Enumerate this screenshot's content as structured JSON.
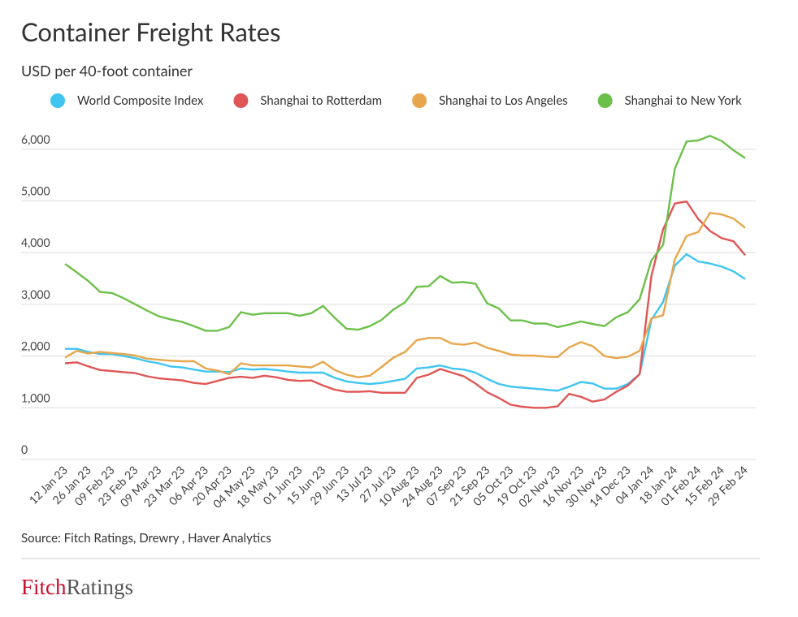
{
  "chart_data": {
    "type": "line",
    "title": "Container Freight Rates",
    "subtitle": "USD per 40-foot container",
    "source": "Source: Fitch Ratings, Drewry , Haver Analytics",
    "categories": [
      "12 Jan 23",
      null,
      "26 Jan 23",
      null,
      "09 Feb 23",
      null,
      "23 Feb 23",
      null,
      "09 Mar 23",
      null,
      "23 Mar 23",
      null,
      "06 Apr 23",
      null,
      "20 Apr 23",
      null,
      "04 May 23",
      null,
      "18 May 23",
      null,
      "01 Jun 23",
      null,
      "15 Jun 23",
      null,
      "29 Jun 23",
      null,
      "13 Jul 23",
      null,
      "27 Jul 23",
      null,
      "10 Aug 23",
      null,
      "24 Aug 23",
      null,
      "07 Sep 23",
      null,
      "21 Sep 23",
      null,
      "05 Oct 23",
      null,
      "19 Oct 23",
      null,
      "02 Nov 23",
      null,
      "16 Nov 23",
      null,
      "30 Nov 23",
      null,
      "14 Dec 23",
      null,
      "04 Jan 24",
      null,
      "18 Jan 24",
      null,
      "01 Feb 24",
      null,
      "15 Feb 24",
      null,
      "29 Feb 24"
    ],
    "series": [
      {
        "name": "World Composite Index",
        "color": "#3fc5f0",
        "values": [
          2140,
          2140,
          2080,
          2040,
          2040,
          2000,
          1960,
          1900,
          1860,
          1800,
          1780,
          1740,
          1700,
          1700,
          1690,
          1760,
          1740,
          1750,
          1730,
          1700,
          1680,
          1680,
          1680,
          1580,
          1510,
          1480,
          1460,
          1480,
          1520,
          1560,
          1760,
          1780,
          1820,
          1760,
          1740,
          1680,
          1560,
          1460,
          1410,
          1390,
          1370,
          1350,
          1330,
          1410,
          1500,
          1470,
          1370,
          1370,
          1460,
          1650,
          2700,
          3050,
          3750,
          3970,
          3830,
          3790,
          3730,
          3640,
          3490
        ]
      },
      {
        "name": "Shanghai to Rotterdam",
        "color": "#e05656",
        "values": [
          1860,
          1880,
          1800,
          1730,
          1710,
          1690,
          1670,
          1610,
          1570,
          1550,
          1530,
          1480,
          1460,
          1520,
          1580,
          1600,
          1580,
          1620,
          1590,
          1540,
          1520,
          1530,
          1430,
          1350,
          1310,
          1310,
          1320,
          1290,
          1290,
          1290,
          1580,
          1640,
          1750,
          1680,
          1610,
          1470,
          1300,
          1190,
          1060,
          1020,
          1000,
          1000,
          1030,
          1270,
          1210,
          1120,
          1160,
          1310,
          1430,
          1650,
          3550,
          4450,
          4950,
          4990,
          4650,
          4420,
          4280,
          4220,
          3950
        ]
      },
      {
        "name": "Shanghai to Los Angeles",
        "color": "#e8a64c",
        "values": [
          1970,
          2100,
          2050,
          2080,
          2060,
          2040,
          2010,
          1950,
          1930,
          1910,
          1900,
          1900,
          1760,
          1720,
          1650,
          1860,
          1820,
          1820,
          1820,
          1820,
          1800,
          1780,
          1890,
          1730,
          1640,
          1590,
          1620,
          1790,
          1970,
          2080,
          2310,
          2350,
          2350,
          2240,
          2220,
          2260,
          2160,
          2100,
          2030,
          2010,
          2010,
          1990,
          1980,
          2170,
          2270,
          2190,
          2000,
          1960,
          1990,
          2100,
          2730,
          2790,
          3870,
          4320,
          4400,
          4770,
          4740,
          4660,
          4480
        ]
      },
      {
        "name": "Shanghai to New York",
        "color": "#6cc04a",
        "values": [
          3780,
          3620,
          3450,
          3240,
          3220,
          3120,
          3000,
          2880,
          2770,
          2710,
          2660,
          2580,
          2490,
          2490,
          2560,
          2850,
          2800,
          2830,
          2830,
          2830,
          2780,
          2830,
          2970,
          2740,
          2530,
          2510,
          2580,
          2700,
          2900,
          3040,
          3340,
          3350,
          3550,
          3420,
          3430,
          3400,
          3020,
          2920,
          2690,
          2690,
          2630,
          2630,
          2560,
          2610,
          2670,
          2620,
          2580,
          2750,
          2850,
          3100,
          3850,
          4150,
          5620,
          6150,
          6170,
          6260,
          6160,
          5980,
          5830
        ]
      }
    ],
    "ylim": [
      0,
      6500
    ],
    "yticks": [
      0,
      {
        "value": 1000,
        "label": "1,000"
      },
      {
        "value": 2000,
        "label": "2,000"
      },
      {
        "value": 3000,
        "label": "3,000"
      },
      {
        "value": 4000,
        "label": "4,000"
      },
      {
        "value": 5000,
        "label": "5,000"
      },
      {
        "value": 6000,
        "label": "6,000"
      }
    ],
    "grid": true
  },
  "logo": {
    "first": "Fitch",
    "second": "Ratings"
  }
}
